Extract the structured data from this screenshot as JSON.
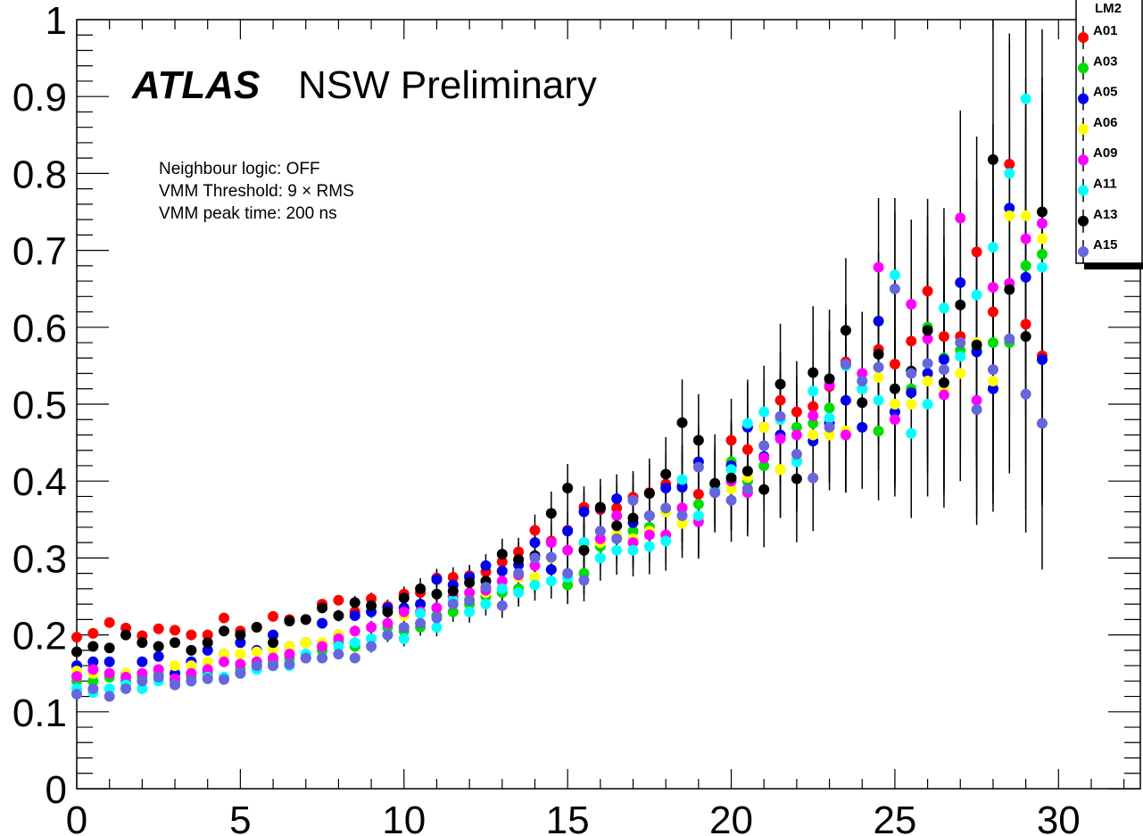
{
  "chart_data": {
    "type": "scatter",
    "title": "",
    "xlabel": "",
    "ylabel": "",
    "xlim": [
      0,
      32.5
    ],
    "ylim": [
      0,
      1
    ],
    "x_ticks": [
      "0",
      "5",
      "10",
      "15",
      "20",
      "25",
      "30"
    ],
    "y_ticks": [
      "0",
      "0.1",
      "0.2",
      "0.3",
      "0.4",
      "0.5",
      "0.6",
      "0.7",
      "0.8",
      "0.9",
      "1"
    ],
    "x": [
      0,
      0.5,
      1,
      1.5,
      2,
      2.5,
      3,
      3.5,
      4,
      4.5,
      5,
      5.5,
      6,
      6.5,
      7,
      7.5,
      8,
      8.5,
      9,
      9.5,
      10,
      10.5,
      11,
      11.5,
      12,
      12.5,
      13,
      13.5,
      14,
      14.5,
      15,
      15.5,
      16,
      16.5,
      17,
      17.5,
      18,
      18.5,
      19,
      19.5,
      20,
      20.5,
      21,
      21.5,
      22,
      22.5,
      23,
      23.5,
      24,
      24.5,
      25,
      25.5,
      26,
      26.5,
      27,
      27.5,
      28,
      28.5,
      29,
      29.5
    ],
    "legend_title": "LM2",
    "legend_position": "top-right",
    "series": [
      {
        "name": "A01",
        "color": "#ff0000",
        "values": [
          0.197,
          0.202,
          0.216,
          0.209,
          0.199,
          0.208,
          0.206,
          0.2,
          0.2,
          0.222,
          0.205,
          0.21,
          0.224,
          0.22,
          0.22,
          0.24,
          0.245,
          0.23,
          0.247,
          0.237,
          0.253,
          0.255,
          0.274,
          0.275,
          0.277,
          0.282,
          0.295,
          0.308,
          0.336,
          0.322,
          0.336,
          0.366,
          0.363,
          0.365,
          0.379,
          0.385,
          0.396,
          0.394,
          0.383,
          0.396,
          0.453,
          0.441,
          0.47,
          0.505,
          0.49,
          0.497,
          0.523,
          0.555,
          0.52,
          0.571,
          0.552,
          0.582,
          0.647,
          0.588,
          0.588,
          0.698,
          0.62,
          0.812,
          0.604,
          0.563
        ]
      },
      {
        "name": "A03",
        "color": "#00dd00",
        "values": [
          0.14,
          0.14,
          0.145,
          0.14,
          0.145,
          0.15,
          0.14,
          0.145,
          0.15,
          0.145,
          0.155,
          0.16,
          0.165,
          0.17,
          0.175,
          0.18,
          0.19,
          0.185,
          0.195,
          0.21,
          0.205,
          0.21,
          0.225,
          0.23,
          0.24,
          0.25,
          0.255,
          0.26,
          0.275,
          0.285,
          0.265,
          0.28,
          0.315,
          0.33,
          0.335,
          0.34,
          0.36,
          0.365,
          0.37,
          0.395,
          0.425,
          0.4,
          0.42,
          0.415,
          0.47,
          0.475,
          0.495,
          0.46,
          0.52,
          0.465,
          0.5,
          0.52,
          0.6,
          0.56,
          0.57,
          0.57,
          0.58,
          0.58,
          0.68,
          0.695
        ]
      },
      {
        "name": "A05",
        "color": "#0000ee",
        "values": [
          0.16,
          0.165,
          0.165,
          0.15,
          0.165,
          0.172,
          0.15,
          0.165,
          0.18,
          0.175,
          0.19,
          0.18,
          0.2,
          0.185,
          0.19,
          0.215,
          0.2,
          0.225,
          0.23,
          0.235,
          0.235,
          0.24,
          0.272,
          0.265,
          0.275,
          0.29,
          0.283,
          0.291,
          0.32,
          0.285,
          0.335,
          0.36,
          0.365,
          0.377,
          0.346,
          0.355,
          0.391,
          0.392,
          0.425,
          0.39,
          0.42,
          0.47,
          0.432,
          0.46,
          0.428,
          0.452,
          0.475,
          0.505,
          0.47,
          0.608,
          0.49,
          0.515,
          0.54,
          0.558,
          0.658,
          0.568,
          0.52,
          0.755,
          0.665,
          0.558
        ]
      },
      {
        "name": "A06",
        "color": "#ffff00",
        "values": [
          0.153,
          0.15,
          0.15,
          0.15,
          0.15,
          0.154,
          0.16,
          0.16,
          0.165,
          0.175,
          0.175,
          0.178,
          0.18,
          0.185,
          0.19,
          0.19,
          0.2,
          0.205,
          0.21,
          0.215,
          0.225,
          0.23,
          0.235,
          0.245,
          0.25,
          0.255,
          0.265,
          0.275,
          0.275,
          0.3,
          0.31,
          0.315,
          0.32,
          0.33,
          0.325,
          0.335,
          0.36,
          0.345,
          0.35,
          0.395,
          0.39,
          0.405,
          0.47,
          0.415,
          0.43,
          0.46,
          0.46,
          0.465,
          0.54,
          0.535,
          0.5,
          0.5,
          0.53,
          0.52,
          0.54,
          0.58,
          0.53,
          0.745,
          0.745,
          0.715
        ]
      },
      {
        "name": "A09",
        "color": "#ff00ff",
        "values": [
          0.146,
          0.155,
          0.15,
          0.145,
          0.15,
          0.155,
          0.143,
          0.15,
          0.155,
          0.165,
          0.162,
          0.165,
          0.17,
          0.175,
          0.17,
          0.185,
          0.195,
          0.205,
          0.21,
          0.215,
          0.23,
          0.23,
          0.235,
          0.25,
          0.255,
          0.258,
          0.27,
          0.278,
          0.29,
          0.32,
          0.31,
          0.32,
          0.325,
          0.355,
          0.32,
          0.33,
          0.33,
          0.365,
          0.347,
          0.385,
          0.4,
          0.385,
          0.43,
          0.455,
          0.46,
          0.485,
          0.525,
          0.46,
          0.54,
          0.678,
          0.48,
          0.63,
          0.585,
          0.512,
          0.742,
          0.505,
          0.652,
          0.657,
          0.715,
          0.735
        ]
      },
      {
        "name": "A11",
        "color": "#00ffff",
        "values": [
          0.13,
          0.125,
          0.13,
          0.135,
          0.13,
          0.14,
          0.135,
          0.14,
          0.145,
          0.145,
          0.15,
          0.155,
          0.16,
          0.16,
          0.175,
          0.17,
          0.185,
          0.19,
          0.195,
          0.2,
          0.195,
          0.228,
          0.21,
          0.245,
          0.23,
          0.24,
          0.26,
          0.255,
          0.265,
          0.27,
          0.275,
          0.32,
          0.3,
          0.31,
          0.31,
          0.315,
          0.322,
          0.402,
          0.355,
          0.39,
          0.415,
          0.475,
          0.49,
          0.48,
          0.425,
          0.517,
          0.482,
          0.55,
          0.52,
          0.505,
          0.668,
          0.462,
          0.5,
          0.625,
          0.562,
          0.642,
          0.704,
          0.8,
          0.897,
          0.678
        ]
      },
      {
        "name": "A13",
        "color": "#000000",
        "values": [
          0.178,
          0.185,
          0.183,
          0.2,
          0.19,
          0.185,
          0.19,
          0.18,
          0.19,
          0.205,
          0.2,
          0.21,
          0.19,
          0.218,
          0.22,
          0.235,
          0.225,
          0.242,
          0.238,
          0.23,
          0.248,
          0.26,
          0.253,
          0.257,
          0.268,
          0.27,
          0.305,
          0.298,
          0.303,
          0.358,
          0.391,
          0.31,
          0.366,
          0.342,
          0.352,
          0.384,
          0.409,
          0.476,
          0.453,
          0.397,
          0.404,
          0.413,
          0.389,
          0.526,
          0.403,
          0.541,
          0.533,
          0.596,
          0.502,
          0.565,
          0.52,
          0.543,
          0.596,
          0.528,
          0.629,
          0.577,
          0.818,
          0.649,
          0.588,
          0.75
        ]
      },
      {
        "name": "A15",
        "color": "#6666dd",
        "values": [
          0.123,
          0.13,
          0.12,
          0.13,
          0.14,
          0.145,
          0.135,
          0.14,
          0.143,
          0.142,
          0.15,
          0.16,
          0.16,
          0.162,
          0.17,
          0.17,
          0.175,
          0.17,
          0.185,
          0.2,
          0.21,
          0.215,
          0.222,
          0.24,
          0.245,
          0.262,
          0.238,
          0.28,
          0.3,
          0.301,
          0.28,
          0.271,
          0.335,
          0.325,
          0.375,
          0.355,
          0.365,
          0.355,
          0.418,
          0.385,
          0.375,
          0.39,
          0.446,
          0.484,
          0.435,
          0.404,
          0.47,
          0.552,
          0.53,
          0.548,
          0.65,
          0.54,
          0.553,
          0.545,
          0.58,
          0.493,
          0.545,
          0.585,
          0.513,
          0.475
        ]
      }
    ]
  },
  "annotations": {
    "atlas_bold": "ATLAS",
    "atlas_rest": "NSW Preliminary",
    "info_lines": [
      "Neighbour logic: OFF",
      "VMM Threshold: 9 × RMS",
      "VMM peak time: 200 ns"
    ]
  }
}
